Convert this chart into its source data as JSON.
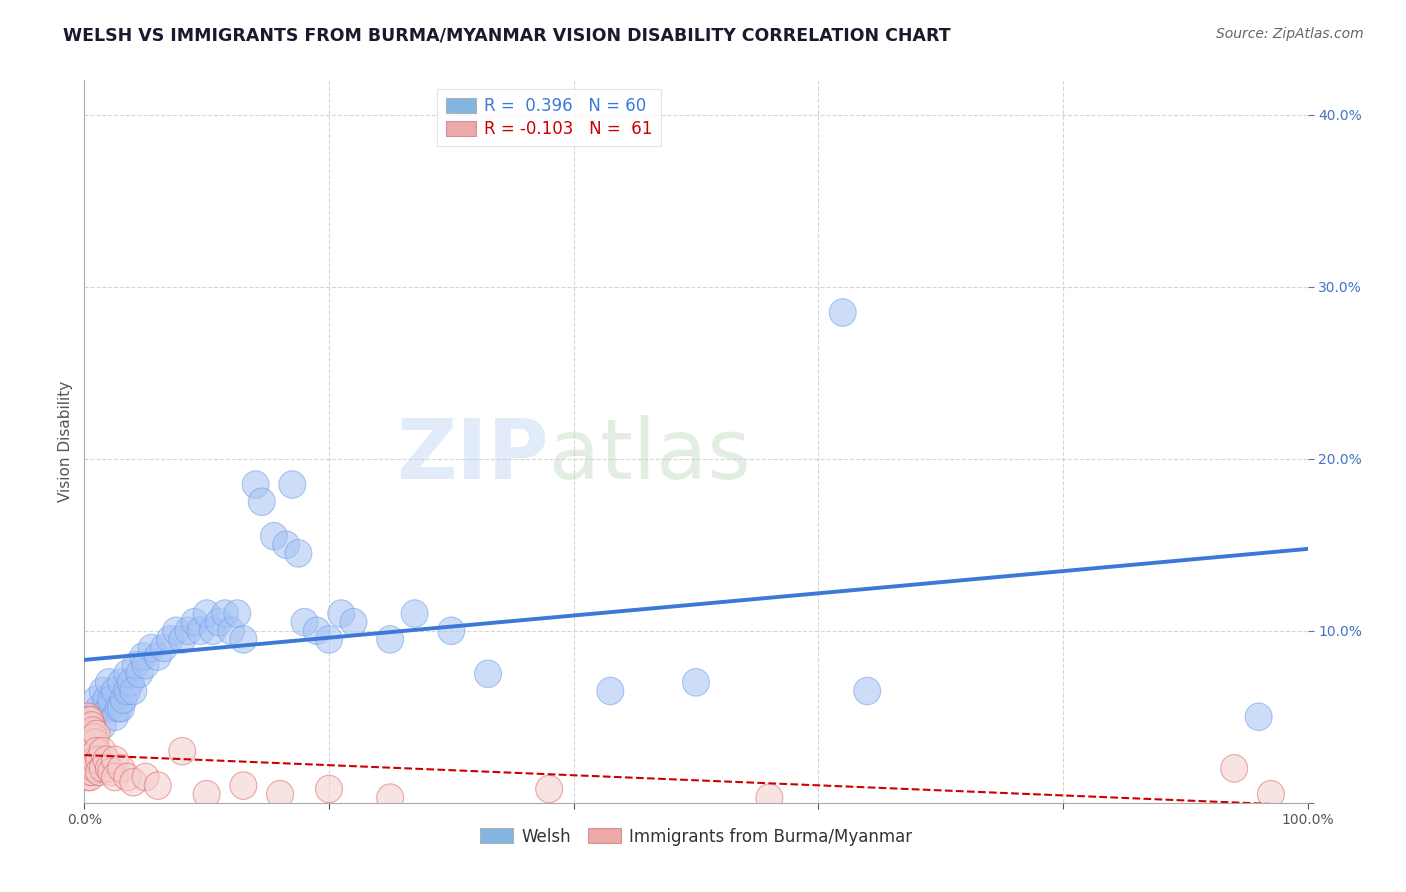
{
  "title": "WELSH VS IMMIGRANTS FROM BURMA/MYANMAR VISION DISABILITY CORRELATION CHART",
  "source": "Source: ZipAtlas.com",
  "ylabel": "Vision Disability",
  "watermark": "ZIPatlas",
  "xlim": [
    0.0,
    1.0
  ],
  "ylim": [
    0.0,
    0.42
  ],
  "xticks": [
    0.0,
    0.2,
    0.4,
    0.6,
    0.8,
    1.0
  ],
  "xtick_labels": [
    "0.0%",
    "",
    "",
    "",
    "",
    "100.0%"
  ],
  "yticks": [
    0.0,
    0.1,
    0.2,
    0.3,
    0.4
  ],
  "ytick_labels": [
    "",
    "10.0%",
    "20.0%",
    "30.0%",
    "40.0%"
  ],
  "r_welsh": 0.396,
  "n_welsh": 60,
  "r_burma": -0.103,
  "n_burma": 61,
  "welsh_color": "#a4c2f4",
  "burma_color": "#f4cccc",
  "welsh_edge_color": "#6d9eeb",
  "burma_edge_color": "#e06666",
  "welsh_line_color": "#3c78d8",
  "burma_line_color": "#cc0000",
  "legend_welsh_color": "#6fa8dc",
  "legend_burma_color": "#ea9999",
  "welsh_points": [
    [
      0.005,
      0.04
    ],
    [
      0.008,
      0.05
    ],
    [
      0.01,
      0.06
    ],
    [
      0.012,
      0.055
    ],
    [
      0.015,
      0.065
    ],
    [
      0.015,
      0.045
    ],
    [
      0.018,
      0.06
    ],
    [
      0.02,
      0.055
    ],
    [
      0.02,
      0.07
    ],
    [
      0.022,
      0.06
    ],
    [
      0.025,
      0.05
    ],
    [
      0.025,
      0.065
    ],
    [
      0.028,
      0.055
    ],
    [
      0.03,
      0.07
    ],
    [
      0.03,
      0.055
    ],
    [
      0.032,
      0.06
    ],
    [
      0.035,
      0.065
    ],
    [
      0.035,
      0.075
    ],
    [
      0.038,
      0.07
    ],
    [
      0.04,
      0.065
    ],
    [
      0.042,
      0.08
    ],
    [
      0.045,
      0.075
    ],
    [
      0.048,
      0.085
    ],
    [
      0.05,
      0.08
    ],
    [
      0.055,
      0.09
    ],
    [
      0.06,
      0.085
    ],
    [
      0.065,
      0.09
    ],
    [
      0.07,
      0.095
    ],
    [
      0.075,
      0.1
    ],
    [
      0.08,
      0.095
    ],
    [
      0.085,
      0.1
    ],
    [
      0.09,
      0.105
    ],
    [
      0.095,
      0.1
    ],
    [
      0.1,
      0.11
    ],
    [
      0.105,
      0.1
    ],
    [
      0.11,
      0.105
    ],
    [
      0.115,
      0.11
    ],
    [
      0.12,
      0.1
    ],
    [
      0.125,
      0.11
    ],
    [
      0.13,
      0.095
    ],
    [
      0.14,
      0.185
    ],
    [
      0.145,
      0.175
    ],
    [
      0.155,
      0.155
    ],
    [
      0.165,
      0.15
    ],
    [
      0.17,
      0.185
    ],
    [
      0.175,
      0.145
    ],
    [
      0.18,
      0.105
    ],
    [
      0.19,
      0.1
    ],
    [
      0.2,
      0.095
    ],
    [
      0.21,
      0.11
    ],
    [
      0.22,
      0.105
    ],
    [
      0.25,
      0.095
    ],
    [
      0.27,
      0.11
    ],
    [
      0.3,
      0.1
    ],
    [
      0.33,
      0.075
    ],
    [
      0.43,
      0.065
    ],
    [
      0.5,
      0.07
    ],
    [
      0.62,
      0.285
    ],
    [
      0.64,
      0.065
    ],
    [
      0.96,
      0.05
    ]
  ],
  "burma_points": [
    [
      0.003,
      0.05
    ],
    [
      0.003,
      0.04
    ],
    [
      0.003,
      0.035
    ],
    [
      0.003,
      0.03
    ],
    [
      0.003,
      0.045
    ],
    [
      0.003,
      0.025
    ],
    [
      0.003,
      0.02
    ],
    [
      0.003,
      0.015
    ],
    [
      0.003,
      0.038
    ],
    [
      0.003,
      0.028
    ],
    [
      0.004,
      0.042
    ],
    [
      0.004,
      0.033
    ],
    [
      0.004,
      0.025
    ],
    [
      0.004,
      0.018
    ],
    [
      0.004,
      0.048
    ],
    [
      0.004,
      0.038
    ],
    [
      0.005,
      0.044
    ],
    [
      0.005,
      0.035
    ],
    [
      0.005,
      0.025
    ],
    [
      0.005,
      0.015
    ],
    [
      0.005,
      0.048
    ],
    [
      0.005,
      0.04
    ],
    [
      0.005,
      0.03
    ],
    [
      0.006,
      0.045
    ],
    [
      0.006,
      0.035
    ],
    [
      0.006,
      0.025
    ],
    [
      0.006,
      0.018
    ],
    [
      0.007,
      0.042
    ],
    [
      0.007,
      0.03
    ],
    [
      0.007,
      0.022
    ],
    [
      0.008,
      0.038
    ],
    [
      0.008,
      0.028
    ],
    [
      0.008,
      0.02
    ],
    [
      0.009,
      0.035
    ],
    [
      0.009,
      0.025
    ],
    [
      0.01,
      0.04
    ],
    [
      0.01,
      0.03
    ],
    [
      0.012,
      0.025
    ],
    [
      0.012,
      0.018
    ],
    [
      0.015,
      0.03
    ],
    [
      0.015,
      0.02
    ],
    [
      0.018,
      0.025
    ],
    [
      0.02,
      0.02
    ],
    [
      0.022,
      0.018
    ],
    [
      0.025,
      0.025
    ],
    [
      0.025,
      0.015
    ],
    [
      0.03,
      0.02
    ],
    [
      0.035,
      0.015
    ],
    [
      0.04,
      0.012
    ],
    [
      0.05,
      0.015
    ],
    [
      0.06,
      0.01
    ],
    [
      0.08,
      0.03
    ],
    [
      0.1,
      0.005
    ],
    [
      0.13,
      0.01
    ],
    [
      0.16,
      0.005
    ],
    [
      0.2,
      0.008
    ],
    [
      0.25,
      0.003
    ],
    [
      0.38,
      0.008
    ],
    [
      0.56,
      0.003
    ],
    [
      0.94,
      0.02
    ],
    [
      0.97,
      0.005
    ]
  ],
  "title_fontsize": 12.5,
  "axis_label_fontsize": 11,
  "tick_fontsize": 10,
  "legend_fontsize": 11,
  "source_fontsize": 10
}
